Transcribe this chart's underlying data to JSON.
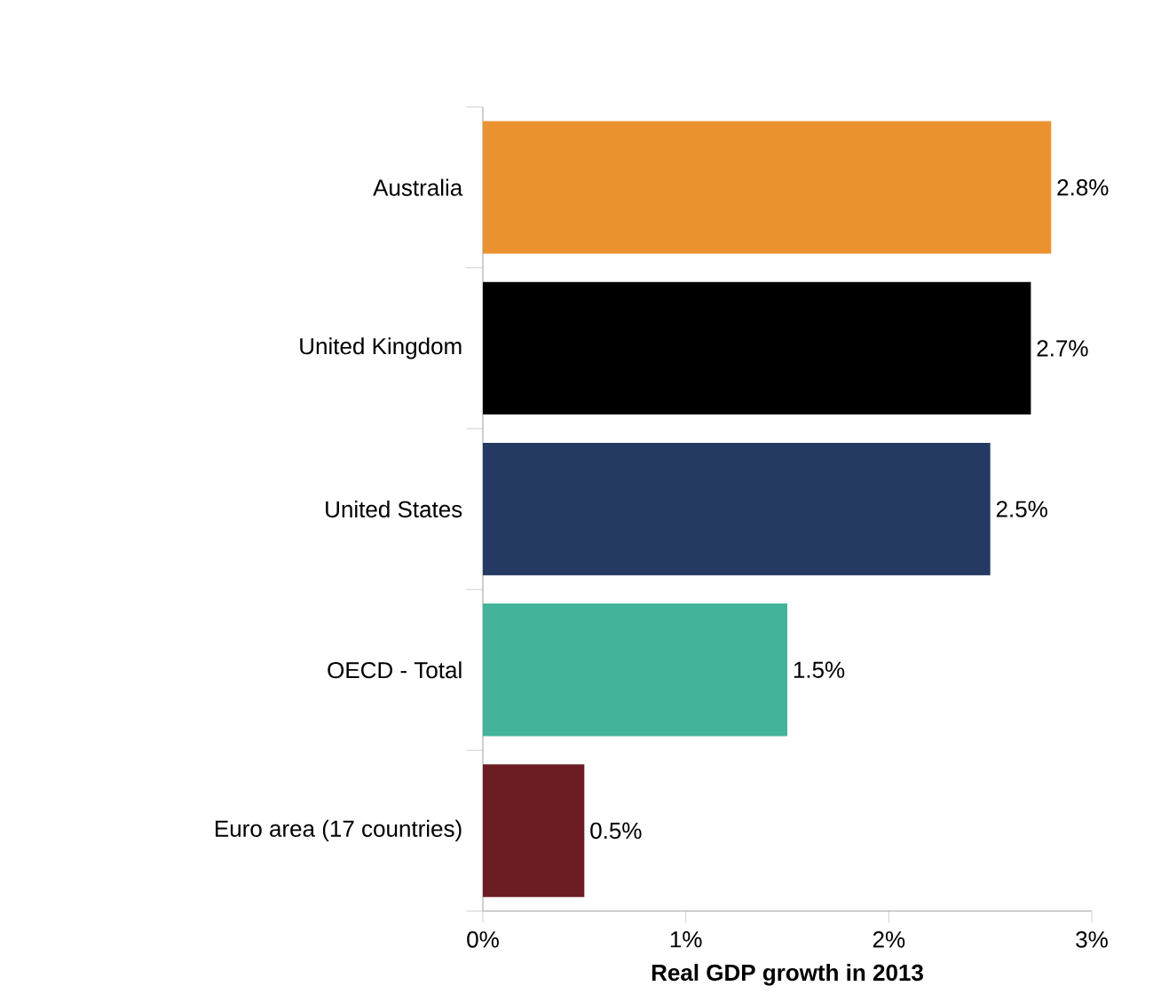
{
  "chart_data": {
    "type": "bar",
    "orientation": "horizontal",
    "xlabel": "Real GDP growth in 2013",
    "categories": [
      "Australia",
      "United Kingdom",
      "United States",
      "OECD - Total",
      "Euro area (17 countries)"
    ],
    "values": [
      2.8,
      2.7,
      2.5,
      1.5,
      0.5
    ],
    "value_labels": [
      "2.8%",
      "2.7%",
      "2.5%",
      "1.5%",
      "0.5%"
    ],
    "colors": [
      "#ea9230",
      "#000000",
      "#243a62",
      "#43b39a",
      "#6b1d23"
    ],
    "xlim": [
      0,
      3
    ],
    "xticks": [
      {
        "value": 0,
        "label": "0%"
      },
      {
        "value": 1,
        "label": "1%"
      },
      {
        "value": 2,
        "label": "2%"
      },
      {
        "value": 3,
        "label": "3%"
      }
    ],
    "grid": false
  }
}
